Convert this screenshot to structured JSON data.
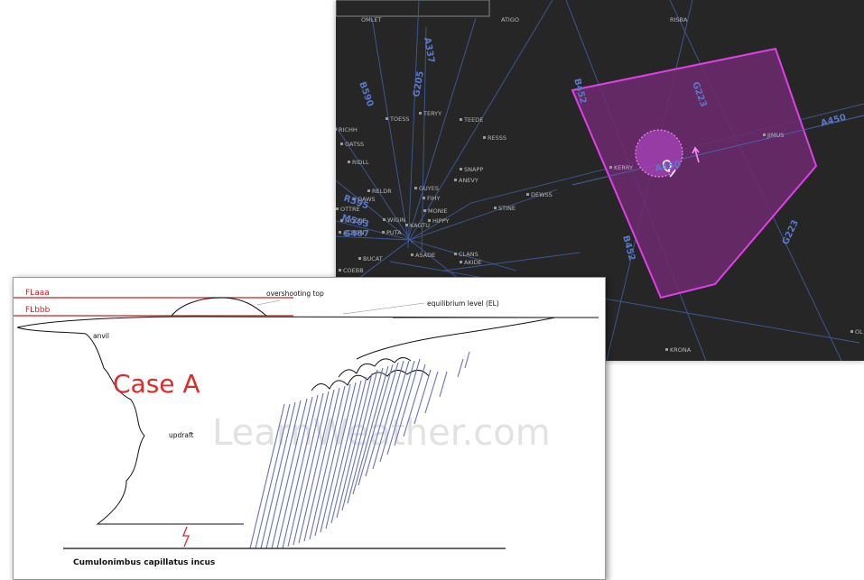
{
  "map": {
    "top_labels": [
      "OMLET",
      "ATIGO",
      "RISBA"
    ],
    "waypoints": [
      "RICHH",
      "TOESS",
      "TERYY",
      "TEEDE",
      "OATSS",
      "RESSS",
      "RIDLL",
      "SNAPP",
      "GUYES",
      "ANEVY",
      "RELDR",
      "OAWS",
      "FIHY",
      "DEWSS",
      "OTTRE",
      "MONIE",
      "STINE",
      "MOGLE",
      "WIGIN",
      "HIPPY",
      "KAGTU",
      "ACRON",
      "PUTA",
      "ASADE",
      "CLANS",
      "BUCAT",
      "AKIDE",
      "COEBB",
      "KERRY",
      "JIMUS",
      "KRONA",
      "OL"
    ],
    "airways": [
      "A337",
      "B590",
      "G205",
      "B452",
      "G223",
      "A450",
      "A450",
      "B452",
      "G223",
      "R595",
      "M503",
      "G467"
    ],
    "colors": {
      "background": "#262626",
      "airspace_fill": "#6b2a6e",
      "airspace_stroke": "#e040e8",
      "airway_line": "#3f5a9a"
    }
  },
  "diagram": {
    "fl_labels": [
      "FLaaa",
      "FLbbb"
    ],
    "annotations": {
      "overshooting_top": "overshooting top",
      "equilibrium": "equilibrium level (EL)",
      "anvil": "anvil",
      "updraft": "updraft"
    },
    "case_label": "Case A",
    "watermark": "LearnWeather.com",
    "caption": "Cumulonimbus capillatus incus",
    "colors": {
      "fl_lines": "#cc2222",
      "case_text": "#e02a2a",
      "precip": "#6b6fb8"
    }
  }
}
